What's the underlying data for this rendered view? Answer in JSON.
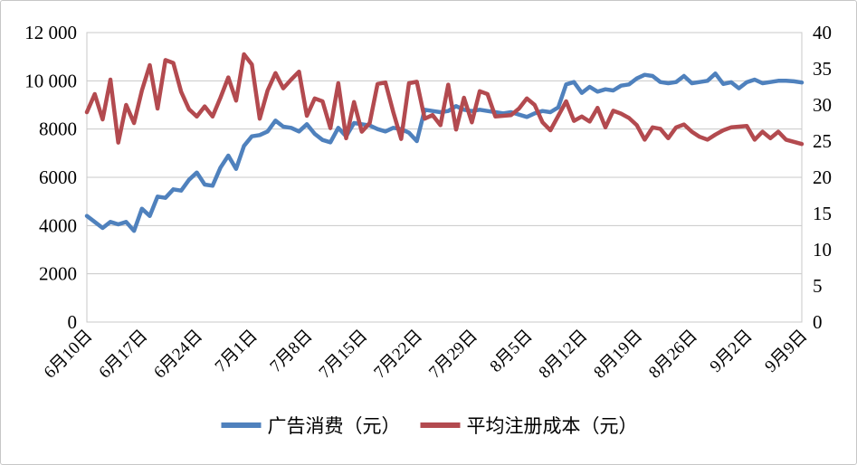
{
  "chart_data": {
    "type": "line",
    "title": "",
    "xlabel": "",
    "ylabel_left": "",
    "ylabel_right": "",
    "grid": true,
    "legend_position": "bottom",
    "x_tick_labels": [
      "6月10日",
      "6月17日",
      "6月24日",
      "7月1日",
      "7月8日",
      "7月15日",
      "7月22日",
      "7月29日",
      "8月5日",
      "8月12日",
      "8月19日",
      "8月26日",
      "9月2日",
      "9月9日"
    ],
    "x_tick_indices": [
      0,
      7,
      14,
      21,
      28,
      35,
      42,
      49,
      56,
      63,
      70,
      77,
      84,
      91
    ],
    "left_axis": {
      "min": 0,
      "max": 12000,
      "step": 2000,
      "tick_labels": [
        "0",
        "2000",
        "4000",
        "6000",
        "8000",
        "10 000",
        "12 000"
      ]
    },
    "right_axis": {
      "min": 0,
      "max": 40,
      "step": 5,
      "tick_labels": [
        "0",
        "5",
        "10",
        "15",
        "20",
        "25",
        "30",
        "35",
        "40"
      ]
    },
    "series": [
      {
        "name": "广告消费（元）",
        "axis": "left",
        "color": "#4f81bd",
        "values": [
          4400,
          4150,
          3900,
          4150,
          4050,
          4150,
          3780,
          4700,
          4400,
          5200,
          5150,
          5500,
          5450,
          5900,
          6200,
          5700,
          5650,
          6400,
          6900,
          6350,
          7300,
          7700,
          7750,
          7900,
          8350,
          8100,
          8050,
          7900,
          8200,
          7800,
          7550,
          7450,
          8050,
          7700,
          8250,
          8200,
          8150,
          8000,
          7900,
          8050,
          8000,
          7850,
          7500,
          8800,
          8750,
          8700,
          8750,
          8950,
          8800,
          8750,
          8800,
          8750,
          8700,
          8650,
          8700,
          8600,
          8500,
          8650,
          8750,
          8700,
          8900,
          9850,
          9950,
          9500,
          9750,
          9550,
          9650,
          9600,
          9800,
          9850,
          10100,
          10250,
          10200,
          9950,
          9900,
          9950,
          10200,
          9900,
          9950,
          10000,
          10300,
          9870,
          9940,
          9690,
          9940,
          10050,
          9900,
          9950,
          10000,
          10000,
          9980,
          9930
        ]
      },
      {
        "name": "平均注册成本（元）",
        "axis": "right",
        "color": "#b34a4f",
        "values": [
          29.0,
          31.5,
          28.0,
          33.5,
          24.8,
          30.0,
          27.5,
          32.0,
          35.5,
          29.5,
          36.2,
          35.8,
          31.8,
          29.4,
          28.4,
          29.8,
          28.4,
          31.0,
          33.8,
          30.6,
          37.0,
          35.6,
          28.1,
          32.0,
          34.4,
          32.3,
          33.5,
          34.6,
          28.5,
          30.9,
          30.5,
          26.8,
          33.0,
          25.4,
          30.4,
          26.3,
          27.5,
          32.9,
          33.1,
          29.0,
          25.3,
          33.0,
          33.2,
          28.1,
          28.6,
          27.2,
          32.8,
          26.6,
          31.0,
          27.6,
          31.9,
          31.5,
          28.4,
          28.5,
          28.6,
          29.5,
          30.9,
          30.0,
          27.6,
          26.5,
          28.5,
          30.5,
          27.8,
          28.4,
          27.7,
          29.6,
          26.9,
          29.2,
          28.8,
          28.2,
          27.2,
          25.2,
          26.9,
          26.7,
          25.4,
          26.9,
          27.3,
          26.3,
          25.6,
          25.2,
          25.9,
          26.5,
          26.9,
          27.0,
          27.1,
          25.2,
          26.3,
          25.4,
          26.3,
          25.2,
          24.9,
          24.6
        ]
      }
    ],
    "colors": {
      "grid": "#c8c8c8",
      "plot_border": "#c8c8c8",
      "text": "#000000"
    }
  },
  "legend": {
    "items": [
      {
        "label": "广告消费（元）",
        "color": "#4f81bd"
      },
      {
        "label": "平均注册成本（元）",
        "color": "#b34a4f"
      }
    ]
  }
}
